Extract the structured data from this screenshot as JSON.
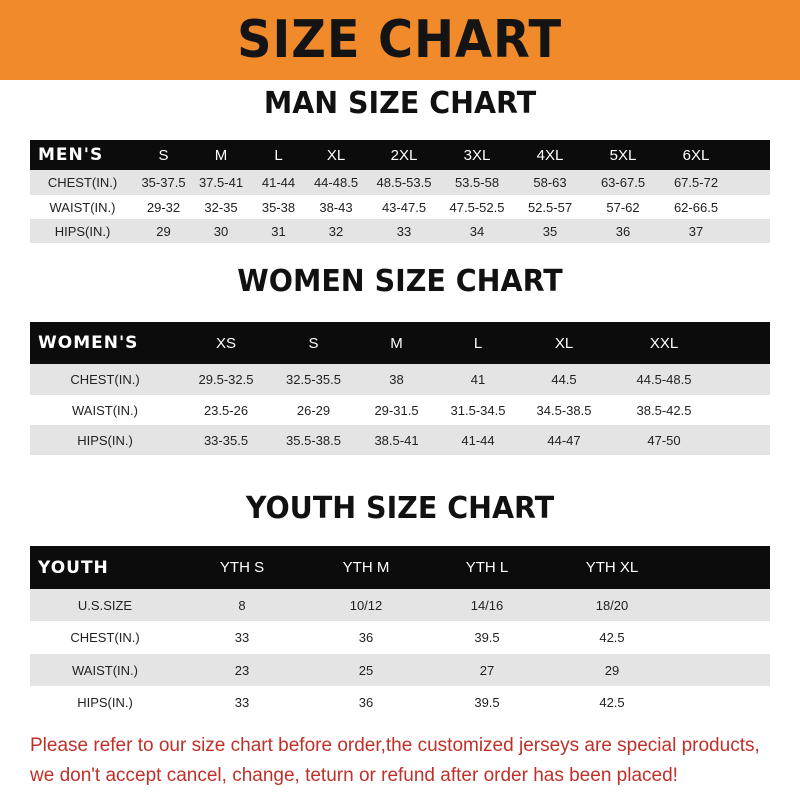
{
  "banner_title": "SIZE CHART",
  "men": {
    "title": "MAN SIZE CHART",
    "header": [
      "MEN'S",
      "S",
      "M",
      "L",
      "XL",
      "2XL",
      "3XL",
      "4XL",
      "5XL",
      "6XL"
    ],
    "rows": [
      [
        "CHEST(IN.)",
        "35-37.5",
        "37.5-41",
        "41-44",
        "44-48.5",
        "48.5-53.5",
        "53.5-58",
        "58-63",
        "63-67.5",
        "67.5-72"
      ],
      [
        "WAIST(IN.)",
        "29-32",
        "32-35",
        "35-38",
        "38-43",
        "43-47.5",
        "47.5-52.5",
        "52.5-57",
        "57-62",
        "62-66.5"
      ],
      [
        "HIPS(IN.)",
        "29",
        "30",
        "31",
        "32",
        "33",
        "34",
        "35",
        "36",
        "37"
      ]
    ]
  },
  "women": {
    "title": "WOMEN SIZE CHART",
    "header": [
      "WOMEN'S",
      "XS",
      "S",
      "M",
      "L",
      "XL",
      "XXL"
    ],
    "rows": [
      [
        "CHEST(IN.)",
        "29.5-32.5",
        "32.5-35.5",
        "38",
        "41",
        "44.5",
        "44.5-48.5"
      ],
      [
        "WAIST(IN.)",
        "23.5-26",
        "26-29",
        "29-31.5",
        "31.5-34.5",
        "34.5-38.5",
        "38.5-42.5"
      ],
      [
        "HIPS(IN.)",
        "33-35.5",
        "35.5-38.5",
        "38.5-41",
        "41-44",
        "44-47",
        "47-50"
      ]
    ]
  },
  "youth": {
    "title": "YOUTH SIZE CHART",
    "header": [
      "YOUTH",
      "YTH S",
      "YTH M",
      "YTH L",
      "YTH XL"
    ],
    "rows": [
      [
        "U.S.SIZE",
        "8",
        "10/12",
        "14/16",
        "18/20"
      ],
      [
        "CHEST(IN.)",
        "33",
        "36",
        "39.5",
        "42.5"
      ],
      [
        "WAIST(IN.)",
        "23",
        "25",
        "27",
        "29"
      ],
      [
        "HIPS(IN.)",
        "33",
        "36",
        "39.5",
        "42.5"
      ]
    ]
  },
  "footer": {
    "line1": "Please refer to our size chart before order,the customized jerseys are special products,",
    "line2": "we don't accept cancel, change, teturn or refund after order has been placed!"
  },
  "colors": {
    "banner": "#f08a2a",
    "header_row": "#0c0c0c",
    "stripe": "#e4e4e4",
    "notice": "#c0302a"
  }
}
